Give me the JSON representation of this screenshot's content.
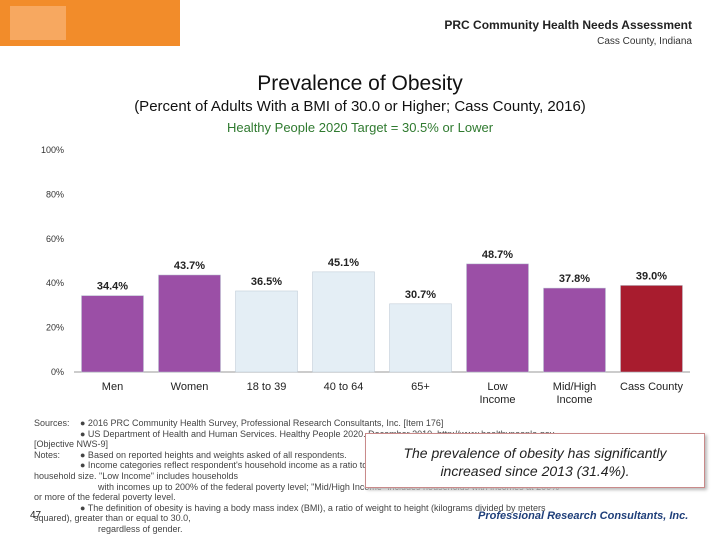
{
  "header": {
    "report_title": "PRC Community Health Needs Assessment",
    "location": "Cass County, Indiana"
  },
  "chart_data": {
    "type": "bar",
    "title": "Prevalence of Obesity",
    "subtitle": "(Percent of Adults With a BMI of 30.0 or Higher; Cass County, 2016)",
    "target_label": "Healthy People 2020 Target = 30.5% or Lower",
    "categories": [
      "Men",
      "Women",
      "18 to 39",
      "40 to 64",
      "65+",
      "Low Income",
      "Mid/High Income",
      "Cass County"
    ],
    "values": [
      34.4,
      43.7,
      36.5,
      45.1,
      30.7,
      48.7,
      37.8,
      39.0
    ],
    "value_labels": [
      "34.4%",
      "43.7%",
      "36.5%",
      "45.1%",
      "30.7%",
      "48.7%",
      "37.8%",
      "39.0%"
    ],
    "bar_colors": [
      "#9b4fa6",
      "#9b4fa6",
      "#e4eef5",
      "#e4eef5",
      "#e4eef5",
      "#9b4fa6",
      "#9b4fa6",
      "#a81c2e"
    ],
    "yticks": [
      "0%",
      "20%",
      "40%",
      "60%",
      "80%",
      "100%"
    ],
    "ylim": [
      0,
      100
    ],
    "grid": false
  },
  "notes": {
    "sources_label": "Sources:",
    "source_1": "●    2016 PRC Community Health Survey, Professional Research Consultants, Inc. [Item 176]",
    "source_2": "●    US Department of Health and Human Services. Healthy People 2020. December 2010. http://www.healthypeople.gov",
    "source_3": "[Objective NWS-9]",
    "notes_label": "Notes:",
    "note_1": "●    Based on reported heights and weights asked of all respondents.",
    "note_2": "●    Income categories reflect respondent's household income as a ratio to the federal poverty level (FPL) for their",
    "note_3": "household size. \"Low Income\" includes households",
    "note_4": "with incomes up to 200% of the federal poverty level; \"Mid/High Income\" includes households with incomes at 200%",
    "note_5": "or more of the federal poverty level.",
    "note_6": "●    The definition of obesity is having a body mass index (BMI), a ratio of weight to height (kilograms divided by meters",
    "note_7": "squared), greater than or equal to 30.0,",
    "note_8": "regardless of gender."
  },
  "callout": {
    "line_1": "The prevalence of obesity has significantly",
    "line_2": "increased since 2013 (31.4%)."
  },
  "page_number": "47",
  "footer_brand": "Professional Research Consultants, Inc."
}
